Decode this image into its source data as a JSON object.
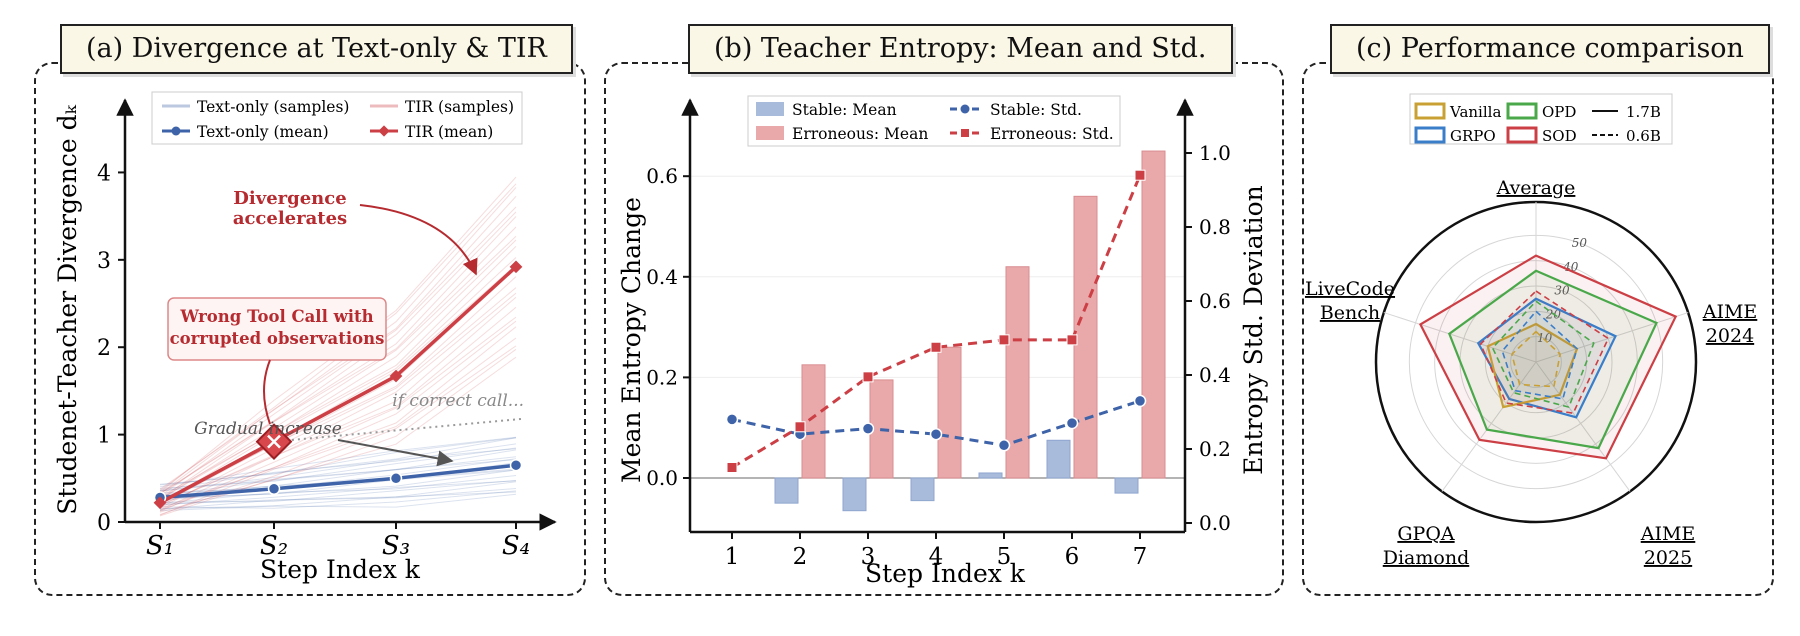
{
  "panels": {
    "a_title": "(a) Divergence at Text-only & TIR",
    "b_title": "(b) Teacher Entropy: Mean and Std.",
    "c_title": "(c) Performance comparison"
  },
  "colors": {
    "blue": "#3e63a8",
    "red": "#cc3f45",
    "green": "#4aa84a",
    "gold": "#c9a033",
    "grpo": "#3a7dc9",
    "bar_blue": "#a9bbdb",
    "bar_red": "#e9a9ab"
  },
  "chart_data": [
    {
      "type": "line",
      "ylabel": "Studenet-Teacher Divergence dₖ",
      "xlabel": "Step Index k",
      "categories": [
        "S₁",
        "S₂",
        "S₃",
        "S₄"
      ],
      "yticks": [
        "0",
        "1",
        "2",
        "3",
        "4"
      ],
      "ylim": [
        0,
        4.6
      ],
      "series": [
        {
          "name": "Text-only (mean)",
          "values": [
            0.28,
            0.38,
            0.5,
            0.65
          ]
        },
        {
          "name": "TIR (mean)",
          "values": [
            0.22,
            0.92,
            1.67,
            2.92
          ]
        }
      ],
      "legend": [
        "Text-only (samples)",
        "TIR (samples)",
        "Text-only (mean)",
        "TIR (mean)"
      ],
      "annotations": {
        "accelerates": [
          "Divergence",
          "accelerates"
        ],
        "wrong_call": [
          "Wrong Tool Call with",
          "corrupted observations"
        ],
        "correct_call": "if correct call...",
        "gradual": "Gradual increase"
      }
    },
    {
      "type": "bar",
      "xlabel": "Step Index k",
      "ylabel": "Mean Entropy Change",
      "y2label": "Entropy Std. Deviation",
      "categories": [
        "1",
        "2",
        "3",
        "4",
        "5",
        "6",
        "7"
      ],
      "yticks": [
        "0.0",
        "0.2",
        "0.4",
        "0.6"
      ],
      "ylim": [
        -0.1,
        0.75
      ],
      "y2ticks": [
        "0.0",
        "0.2",
        "0.4",
        "0.6",
        "0.8",
        "1.0"
      ],
      "y2lim": [
        0.0,
        1.15
      ],
      "series": [
        {
          "name": "Stable: Mean",
          "values": [
            0.0,
            -0.05,
            -0.065,
            -0.045,
            0.01,
            0.075,
            -0.03
          ]
        },
        {
          "name": "Erroneous: Mean",
          "values": [
            0.0,
            0.225,
            0.195,
            0.26,
            0.42,
            0.56,
            0.65
          ]
        },
        {
          "name": "Stable: Std.",
          "values": [
            0.28,
            0.24,
            0.255,
            0.24,
            0.21,
            0.27,
            0.33
          ]
        },
        {
          "name": "Erroneous: Std.",
          "values": [
            0.15,
            0.26,
            0.395,
            0.475,
            0.495,
            0.495,
            0.94
          ]
        }
      ]
    },
    {
      "type": "radar",
      "axes": [
        "Average",
        "AIME 2024",
        "AIME 2025",
        "GPQA Diamond",
        "LiveCode Bench"
      ],
      "axis_labels": [
        [
          "Average"
        ],
        [
          "AIME",
          "2024"
        ],
        [
          "AIME",
          "2025"
        ],
        [
          "GPQA",
          "Diamond"
        ],
        [
          "LiveCode",
          "Bench"
        ]
      ],
      "rticks": [
        "10",
        "20",
        "30",
        "40",
        "50"
      ],
      "rmax": 60,
      "legend": [
        "Vanilla",
        "OPD",
        "1.7B",
        "GRPO",
        "SOD",
        "0.6B"
      ],
      "series": [
        {
          "name": "SOD",
          "model": "1.7B",
          "values": [
            42,
            58,
            47,
            38,
            48
          ]
        },
        {
          "name": "OPD",
          "model": "1.7B",
          "values": [
            36,
            50,
            42,
            33,
            36
          ]
        },
        {
          "name": "GRPO",
          "model": "1.7B",
          "values": [
            25,
            33,
            27,
            18,
            24
          ]
        },
        {
          "name": "Vanilla",
          "model": "1.7B",
          "values": [
            15,
            17,
            16,
            22,
            20
          ]
        },
        {
          "name": "SOD",
          "model": "0.6B",
          "values": [
            28,
            30,
            25,
            20,
            23
          ]
        },
        {
          "name": "OPD",
          "model": "0.6B",
          "values": [
            24,
            24,
            22,
            15,
            18
          ]
        },
        {
          "name": "GRPO",
          "model": "0.6B",
          "values": [
            20,
            17,
            18,
            14,
            14
          ]
        },
        {
          "name": "Vanilla",
          "model": "0.6B",
          "values": [
            12,
            10,
            12,
            11,
            10
          ]
        }
      ]
    }
  ]
}
